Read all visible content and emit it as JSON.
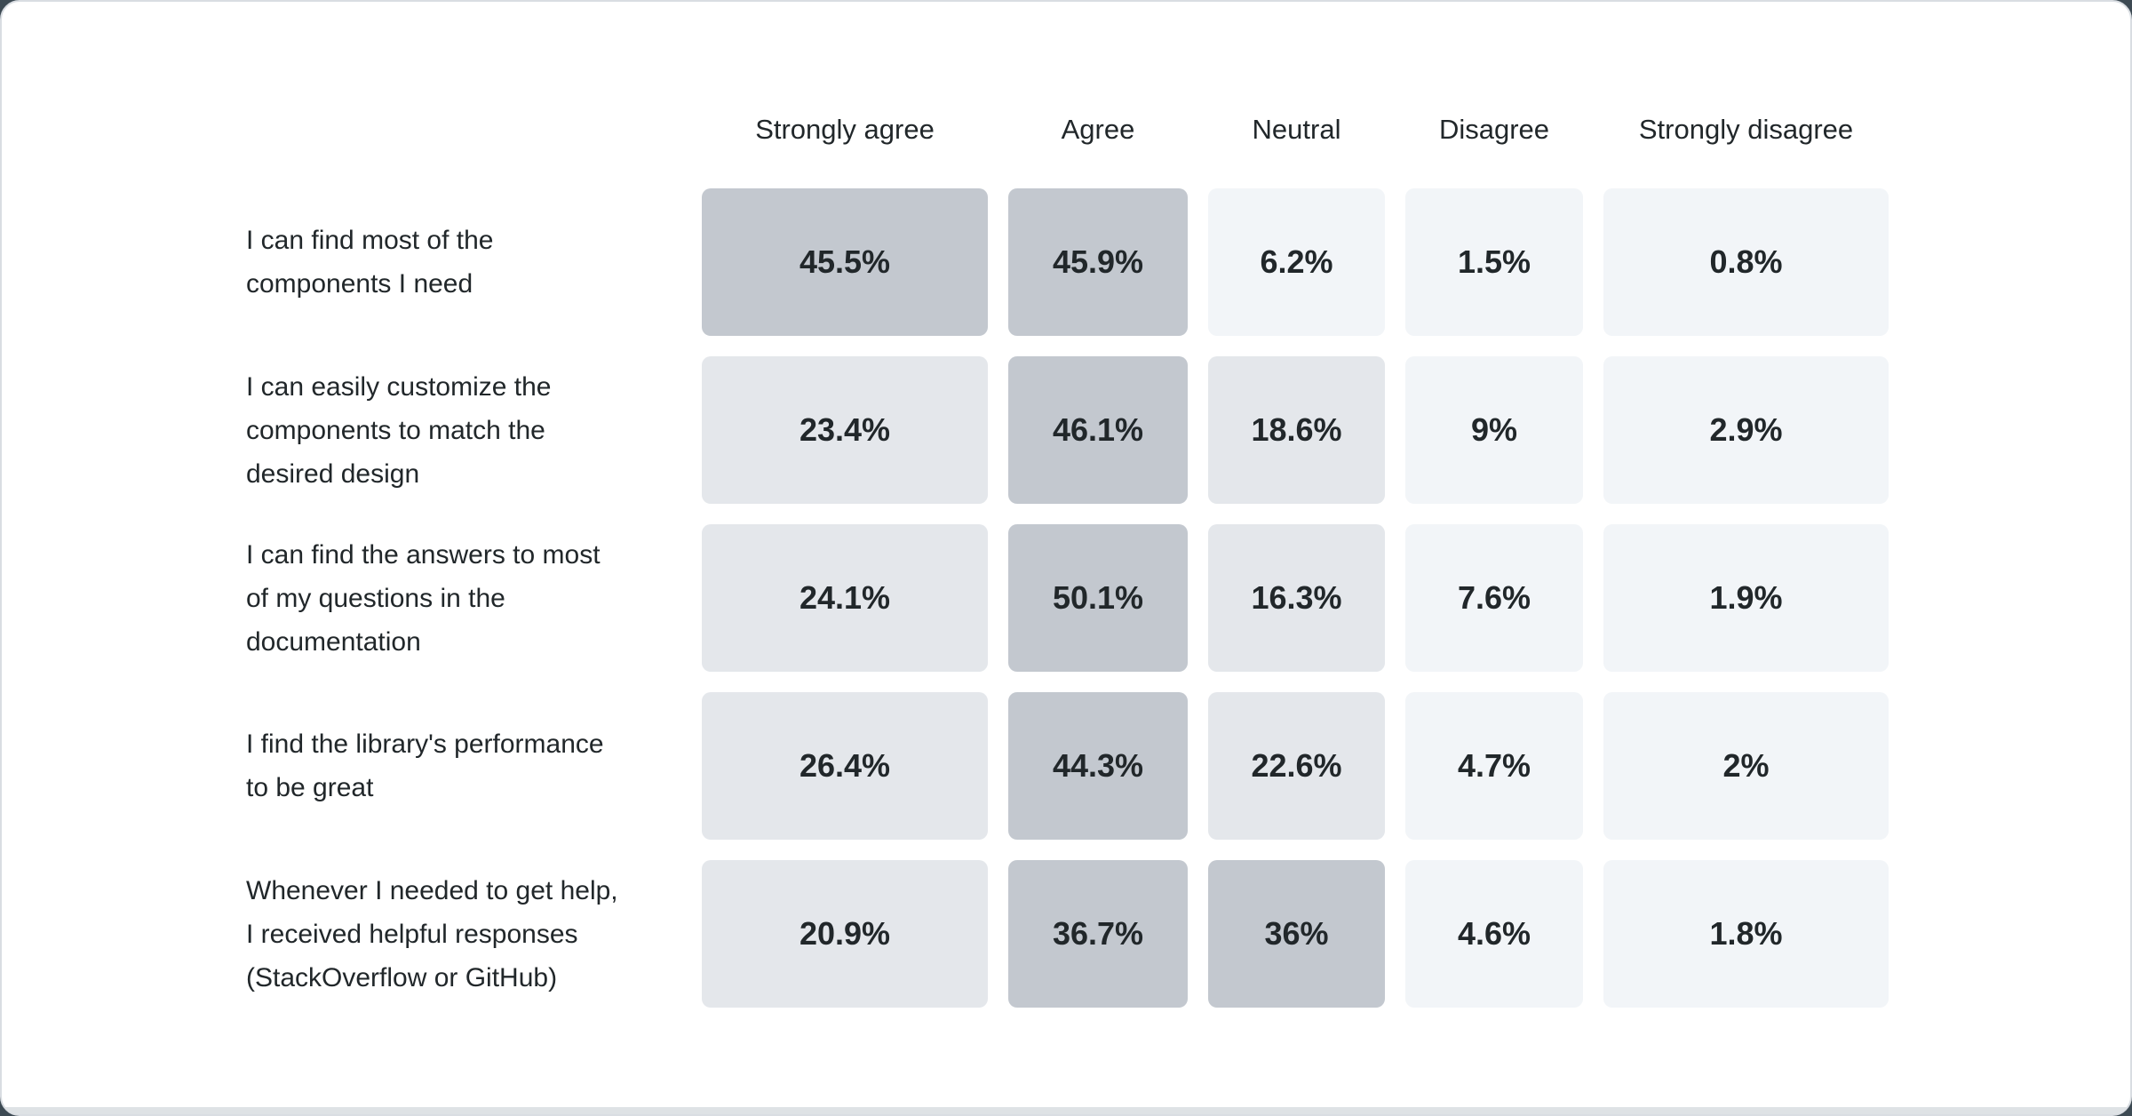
{
  "page": {
    "background": "#3d4a53",
    "card_background": "#ffffff",
    "card_border_color": "#d9dde2",
    "bottom_strip_color": "#dee2e5",
    "text_color": "#21272a"
  },
  "chart_data": {
    "type": "heatmap",
    "title": "",
    "columns": [
      "Strongly agree",
      "Agree",
      "Neutral",
      "Disagree",
      "Strongly disagree"
    ],
    "rows": [
      {
        "label": "I can find most of the\ncomponents I need",
        "values": [
          45.5,
          45.9,
          6.2,
          1.5,
          0.8
        ],
        "display": [
          "45.5%",
          "45.9%",
          "6.2%",
          "1.5%",
          "0.8%"
        ]
      },
      {
        "label": "I can easily customize the\ncomponents to match the\ndesired design",
        "values": [
          23.4,
          46.1,
          18.6,
          9,
          2.9
        ],
        "display": [
          "23.4%",
          "46.1%",
          "18.6%",
          "9%",
          "2.9%"
        ]
      },
      {
        "label": "I can find the answers to most\nof my questions in the\ndocumentation",
        "values": [
          24.1,
          50.1,
          16.3,
          7.6,
          1.9
        ],
        "display": [
          "24.1%",
          "50.1%",
          "16.3%",
          "7.6%",
          "1.9%"
        ]
      },
      {
        "label": "I find the library's performance\nto be great",
        "values": [
          26.4,
          44.3,
          22.6,
          4.7,
          2
        ],
        "display": [
          "26.4%",
          "44.3%",
          "22.6%",
          "4.7%",
          "2%"
        ]
      },
      {
        "label": "Whenever I needed to get help,\nI received helpful responses\n(StackOverflow or GitHub)",
        "values": [
          20.9,
          36.7,
          36,
          4.6,
          1.8
        ],
        "display": [
          "20.9%",
          "36.7%",
          "36%",
          "4.6%",
          "1.8%"
        ]
      }
    ],
    "value_unit": "%",
    "color_scale": [
      {
        "min": 30,
        "color": "#c3c8cf"
      },
      {
        "min": 12,
        "color": "#e4e7eb"
      },
      {
        "min": 0,
        "color": "#f2f5f8"
      }
    ],
    "legend": "none",
    "grid": "off"
  }
}
